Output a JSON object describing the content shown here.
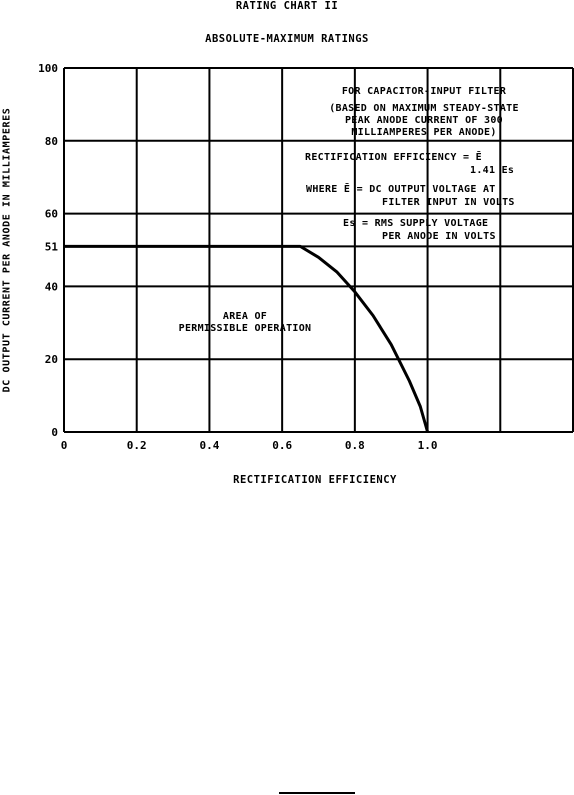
{
  "header": {
    "title": "RATING CHART II",
    "subtitle": "ABSOLUTE-MAXIMUM RATINGS"
  },
  "chart_data": {
    "type": "line",
    "title": "RATING CHART II",
    "subtitle": "ABSOLUTE-MAXIMUM RATINGS",
    "xlabel": "RECTIFICATION EFFICIENCY",
    "ylabel": "DC OUTPUT CURRENT PER ANODE IN MILLIAMPERES",
    "xlim": [
      0,
      1.4
    ],
    "ylim": [
      0,
      100
    ],
    "x_ticks": [
      0,
      0.2,
      0.4,
      0.6,
      0.8,
      1.0
    ],
    "x_tick_labels": [
      "0",
      "0.2",
      "0.4",
      "0.6",
      "0.8",
      "1.0"
    ],
    "x_grid": [
      0,
      0.2,
      0.4,
      0.6,
      0.8,
      1.0,
      1.2,
      1.4
    ],
    "y_ticks": [
      0,
      20,
      40,
      51,
      60,
      80,
      100
    ],
    "y_tick_labels": [
      "0",
      "20",
      "40",
      "51",
      "60",
      "80",
      "100"
    ],
    "grid": true,
    "series": [
      {
        "x": [
          0,
          0.65,
          0.7,
          0.75,
          0.8,
          0.85,
          0.9,
          0.95,
          0.98,
          1.0
        ],
        "y": [
          51,
          51,
          48,
          44,
          38.5,
          32,
          24,
          14,
          7,
          0
        ]
      }
    ],
    "annotations": [
      {
        "lines": [
          "AREA OF",
          "PERMISSIBLE OPERATION"
        ]
      }
    ]
  },
  "notes": {
    "filter_title": "FOR CAPACITOR-INPUT FILTER",
    "based_line1": "(BASED ON MAXIMUM STEADY-STATE",
    "based_line2": "PEAK ANODE CURRENT OF 300",
    "based_line3": "MILLIAMPERES PER ANODE)",
    "efficiency_formula": "RECTIFICATION EFFICIENCY = Ē",
    "efficiency_denominator": "1.41 Es",
    "where_line1": "WHERE Ē = DC OUTPUT VOLTAGE AT",
    "where_line2": "FILTER INPUT IN VOLTS",
    "es_line1": "Es = RMS SUPPLY VOLTAGE",
    "es_line2": "PER ANODE IN VOLTS"
  }
}
